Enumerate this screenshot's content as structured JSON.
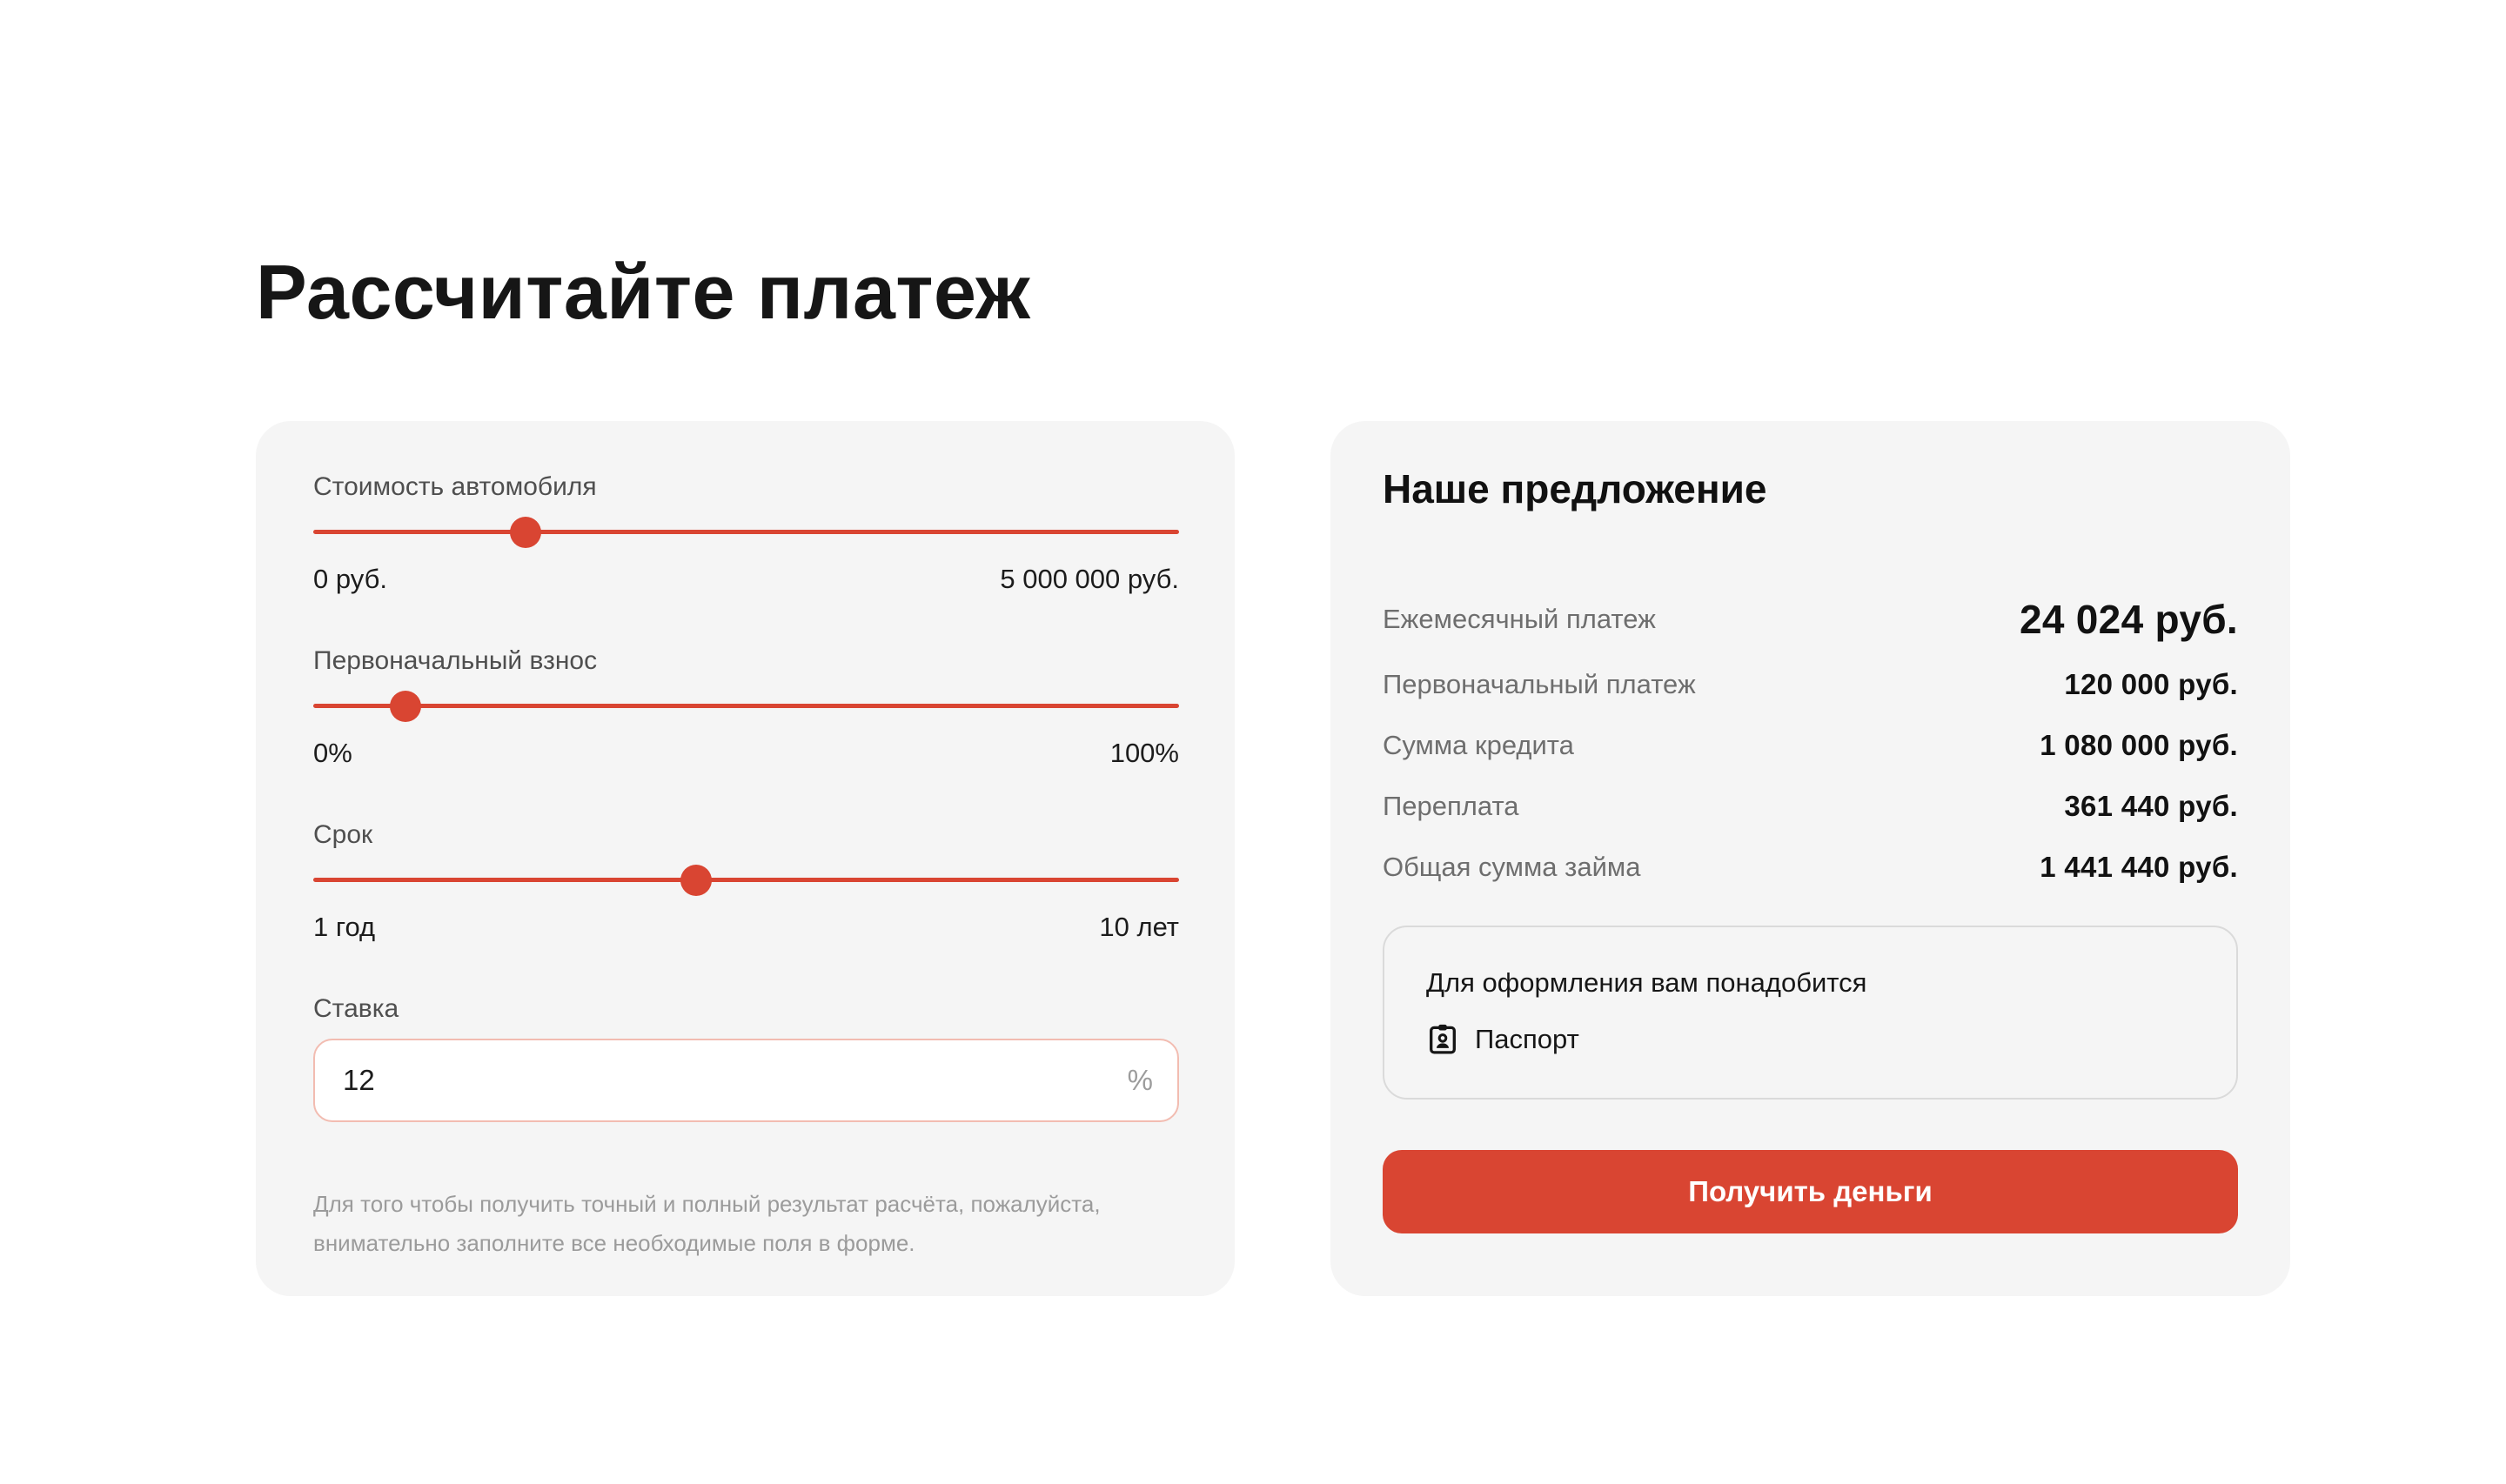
{
  "page": {
    "title": "Рассчитайте платеж"
  },
  "calculator": {
    "sliders": [
      {
        "label": "Стоимость автомобиля",
        "min_label": "0 руб.",
        "max_label": "5 000 000 руб.",
        "position_pct": 24.5
      },
      {
        "label": "Первоначальный взнос",
        "min_label": "0%",
        "max_label": "100%",
        "position_pct": 10.7
      },
      {
        "label": "Срок",
        "min_label": "1 год",
        "max_label": "10 лет",
        "position_pct": 44.2
      }
    ],
    "rate": {
      "label": "Ставка",
      "value": "12",
      "suffix": "%"
    },
    "note": "Для того чтобы получить точный и полный результат расчёта, пожалуйста, внимательно заполните все необходимые поля в форме."
  },
  "offer": {
    "title": "Наше предложение",
    "rows": [
      {
        "label": "Ежемесячный платеж",
        "value": "24 024 руб."
      },
      {
        "label": "Первоначальный платеж",
        "value": "120 000 руб."
      },
      {
        "label": "Сумма кредита",
        "value": "1 080 000 руб."
      },
      {
        "label": "Переплата",
        "value": "361 440 руб."
      },
      {
        "label": "Общая сумма займа",
        "value": "1 441 440 руб."
      }
    ],
    "requirements": {
      "title": "Для оформления вам понадобится",
      "items": [
        {
          "icon": "id-badge-icon",
          "label": "Паспорт"
        }
      ]
    },
    "cta_label": "Получить деньги"
  },
  "colors": {
    "accent": "#D94532",
    "card_background": "#F5F5F5",
    "rate_input_border": "#F2BCB1"
  }
}
